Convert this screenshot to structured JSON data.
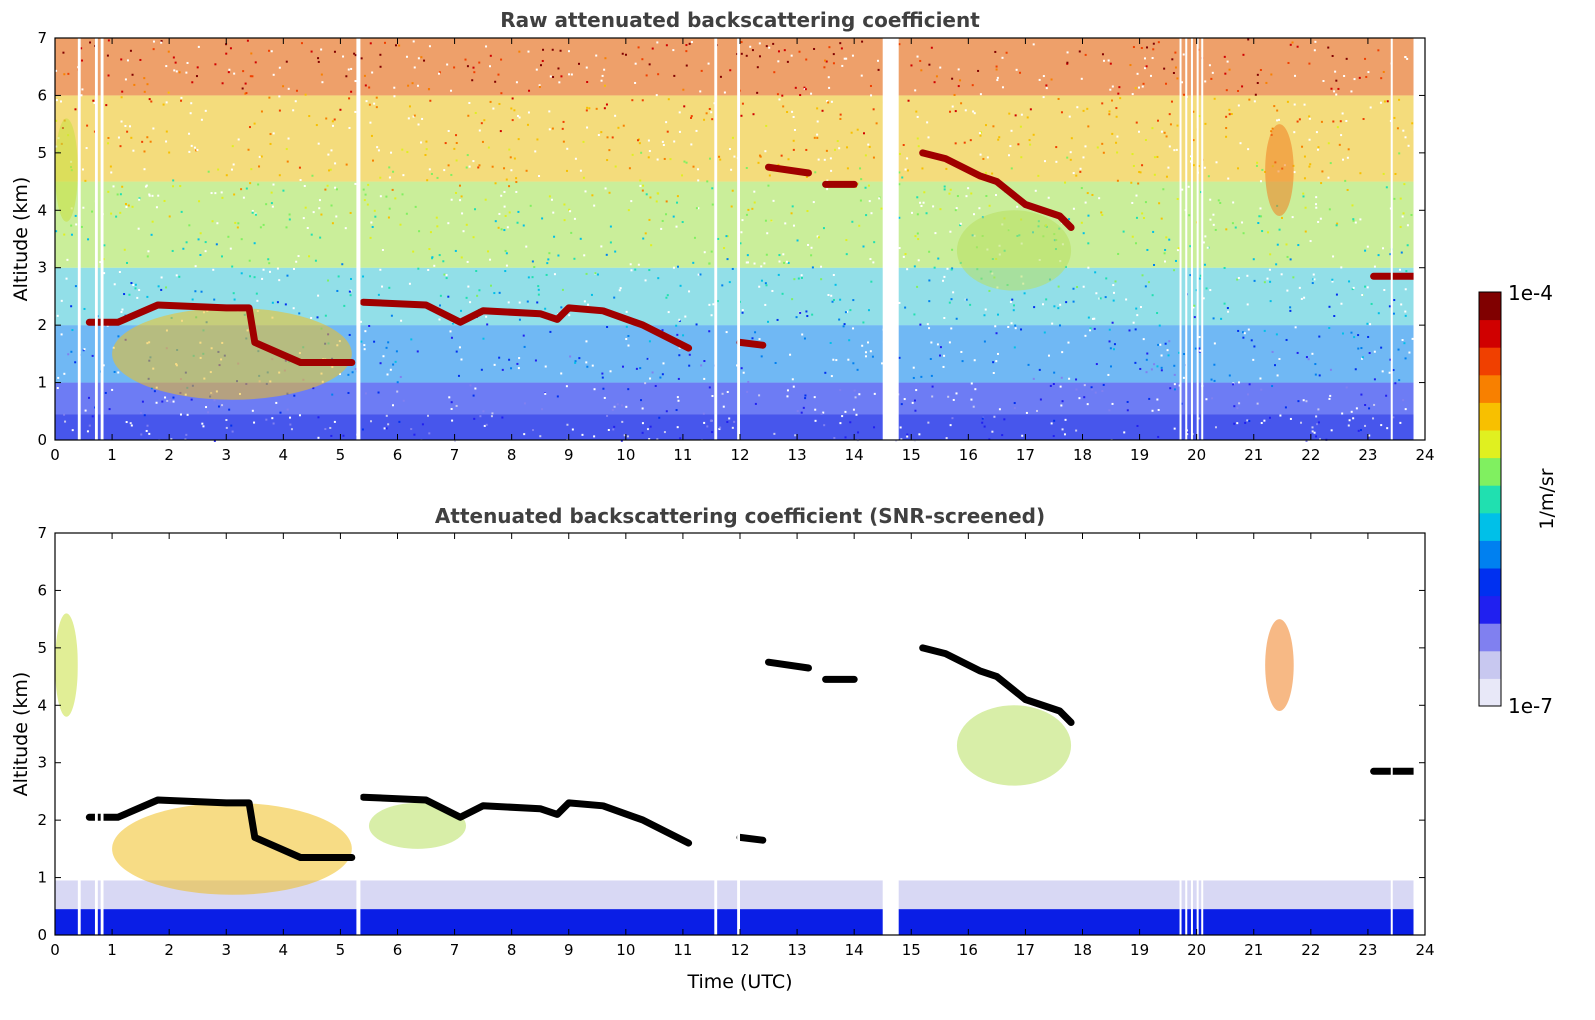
{
  "chart_data": [
    {
      "type": "heatmap",
      "title": "Raw attenuated backscattering coefficient",
      "xlabel": "",
      "ylabel": "Altitude (km)",
      "xlim": [
        0,
        24
      ],
      "ylim": [
        0,
        7
      ],
      "xticks": [
        0,
        1,
        2,
        3,
        4,
        5,
        6,
        7,
        8,
        9,
        10,
        11,
        12,
        13,
        14,
        15,
        16,
        17,
        18,
        19,
        20,
        21,
        22,
        23,
        24
      ],
      "yticks": [
        0,
        1,
        2,
        3,
        4,
        5,
        6,
        7
      ],
      "data_gaps_utc": [
        [
          0.4,
          0.45
        ],
        [
          0.7,
          0.75
        ],
        [
          0.8,
          0.85
        ],
        [
          5.28,
          5.35
        ],
        [
          14.5,
          14.78
        ],
        [
          11.55,
          11.6
        ],
        [
          11.95,
          12.0
        ],
        [
          19.7,
          19.72
        ],
        [
          19.8,
          19.82
        ],
        [
          19.9,
          19.92
        ],
        [
          20.0,
          20.02
        ],
        [
          20.08,
          20.1
        ],
        [
          23.4,
          23.42
        ]
      ],
      "background_colors_by_altitude": [
        {
          "alt_range": [
            0,
            0.45
          ],
          "color": "#0a1ee6"
        },
        {
          "alt_range": [
            0.45,
            1.0
          ],
          "color": "#3c50f0"
        },
        {
          "alt_range": [
            1.0,
            2.0
          ],
          "color": "#40a0f0"
        },
        {
          "alt_range": [
            2.0,
            3.0
          ],
          "color": "#6dd4e0"
        },
        {
          "alt_range": [
            3.0,
            4.5
          ],
          "color": "#b8e878"
        },
        {
          "alt_range": [
            4.5,
            6.0
          ],
          "color": "#f0d050"
        },
        {
          "alt_range": [
            6.0,
            7.0
          ],
          "color": "#e88038"
        }
      ],
      "layers": [
        {
          "name": "aerosol_layer",
          "points": [
            [
              0.6,
              2.05
            ],
            [
              1.1,
              2.05
            ],
            [
              1.8,
              2.35
            ],
            [
              3.0,
              2.3
            ],
            [
              3.4,
              2.3
            ],
            [
              3.5,
              1.7
            ],
            [
              4.3,
              1.35
            ],
            [
              5.2,
              1.35
            ]
          ],
          "color": "#a00000"
        },
        {
          "name": "aerosol_layer",
          "points": [
            [
              5.4,
              2.4
            ],
            [
              6.5,
              2.35
            ],
            [
              7.1,
              2.05
            ],
            [
              7.5,
              2.25
            ],
            [
              8.5,
              2.2
            ],
            [
              8.8,
              2.1
            ],
            [
              9.0,
              2.3
            ],
            [
              9.6,
              2.25
            ],
            [
              10.3,
              2.0
            ],
            [
              11.1,
              1.6
            ]
          ],
          "color": "#a00000"
        },
        {
          "name": "cloud_layer",
          "points": [
            [
              12.5,
              4.75
            ],
            [
              13.2,
              4.65
            ]
          ],
          "color": "#a00000"
        },
        {
          "name": "cloud_layer",
          "points": [
            [
              13.5,
              4.45
            ],
            [
              14.0,
              4.45
            ]
          ],
          "color": "#a00000"
        },
        {
          "name": "cloud_layer",
          "points": [
            [
              12.0,
              1.7
            ],
            [
              12.4,
              1.65
            ]
          ],
          "color": "#a00000"
        },
        {
          "name": "cloud_layer",
          "points": [
            [
              15.2,
              5.0
            ],
            [
              15.6,
              4.9
            ],
            [
              16.2,
              4.6
            ],
            [
              16.5,
              4.5
            ],
            [
              17.0,
              4.1
            ],
            [
              17.6,
              3.9
            ],
            [
              17.8,
              3.7
            ]
          ],
          "color": "#a00000"
        },
        {
          "name": "cloud_layer",
          "points": [
            [
              23.1,
              2.85
            ],
            [
              23.8,
              2.85
            ]
          ],
          "color": "#a00000"
        }
      ],
      "aerosol_regions": [
        {
          "x": [
            1.0,
            5.2
          ],
          "y": [
            0.7,
            2.3
          ],
          "color": "#f0c020"
        },
        {
          "x": [
            15.8,
            17.8
          ],
          "y": [
            2.6,
            4.0
          ],
          "color": "#b8e060"
        },
        {
          "x": [
            21.2,
            21.7
          ],
          "y": [
            3.9,
            5.5
          ],
          "color": "#f08020"
        },
        {
          "x": [
            0.0,
            0.4
          ],
          "y": [
            3.8,
            5.6
          ],
          "color": "#c8e040"
        }
      ]
    },
    {
      "type": "heatmap",
      "title": "Attenuated backscattering coefficient (SNR-screened)",
      "xlabel": "Time (UTC)",
      "ylabel": "Altitude (km)",
      "xlim": [
        0,
        24
      ],
      "ylim": [
        0,
        7
      ],
      "xticks": [
        0,
        1,
        2,
        3,
        4,
        5,
        6,
        7,
        8,
        9,
        10,
        11,
        12,
        13,
        14,
        15,
        16,
        17,
        18,
        19,
        20,
        21,
        22,
        23,
        24
      ],
      "yticks": [
        0,
        1,
        2,
        3,
        4,
        5,
        6,
        7
      ],
      "layers": [
        {
          "name": "aerosol_layer",
          "points": [
            [
              0.6,
              2.05
            ],
            [
              1.1,
              2.05
            ],
            [
              1.8,
              2.35
            ],
            [
              3.0,
              2.3
            ],
            [
              3.4,
              2.3
            ],
            [
              3.5,
              1.7
            ],
            [
              4.3,
              1.35
            ],
            [
              5.2,
              1.35
            ]
          ],
          "color": "#000000"
        },
        {
          "name": "aerosol_layer",
          "points": [
            [
              5.4,
              2.4
            ],
            [
              6.5,
              2.35
            ],
            [
              7.1,
              2.05
            ],
            [
              7.5,
              2.25
            ],
            [
              8.5,
              2.2
            ],
            [
              8.8,
              2.1
            ],
            [
              9.0,
              2.3
            ],
            [
              9.6,
              2.25
            ],
            [
              10.3,
              2.0
            ],
            [
              11.1,
              1.6
            ]
          ],
          "color": "#000000"
        },
        {
          "name": "cloud_layer",
          "points": [
            [
              12.5,
              4.75
            ],
            [
              13.2,
              4.65
            ]
          ],
          "color": "#000000"
        },
        {
          "name": "cloud_layer",
          "points": [
            [
              13.5,
              4.45
            ],
            [
              14.0,
              4.45
            ]
          ],
          "color": "#000000"
        },
        {
          "name": "cloud_layer",
          "points": [
            [
              12.0,
              1.7
            ],
            [
              12.4,
              1.65
            ]
          ],
          "color": "#000000"
        },
        {
          "name": "cloud_layer",
          "points": [
            [
              15.2,
              5.0
            ],
            [
              15.6,
              4.9
            ],
            [
              16.2,
              4.6
            ],
            [
              16.5,
              4.5
            ],
            [
              17.0,
              4.1
            ],
            [
              17.6,
              3.9
            ],
            [
              17.8,
              3.7
            ]
          ],
          "color": "#000000"
        },
        {
          "name": "cloud_layer",
          "points": [
            [
              23.1,
              2.85
            ],
            [
              23.8,
              2.85
            ]
          ],
          "color": "#000000"
        }
      ],
      "aerosol_regions": [
        {
          "x": [
            1.0,
            5.2
          ],
          "y": [
            0.7,
            2.3
          ],
          "color": "#f0c020"
        },
        {
          "x": [
            15.8,
            17.8
          ],
          "y": [
            2.6,
            4.0
          ],
          "color": "#b8e060"
        },
        {
          "x": [
            21.2,
            21.7
          ],
          "y": [
            3.9,
            5.5
          ],
          "color": "#f08020"
        },
        {
          "x": [
            0.0,
            0.4
          ],
          "y": [
            3.8,
            5.6
          ],
          "color": "#c8e040"
        },
        {
          "x": [
            5.5,
            7.2
          ],
          "y": [
            1.5,
            2.3
          ],
          "color": "#b8e060"
        }
      ],
      "surface_layer": {
        "top_km": 0.45,
        "color": "#0a1ee6"
      }
    }
  ],
  "colorbar": {
    "label": "1/m/sr",
    "max_label": "1e-4",
    "min_label": "1e-7",
    "scale": "log",
    "colormap": [
      "#e8e8f8",
      "#c8c8f0",
      "#8080f0",
      "#2020f0",
      "#0030f0",
      "#0080f0",
      "#00c0e8",
      "#20e0b0",
      "#80f060",
      "#e0f020",
      "#f8c000",
      "#f88000",
      "#f04000",
      "#d00000",
      "#800000"
    ]
  }
}
